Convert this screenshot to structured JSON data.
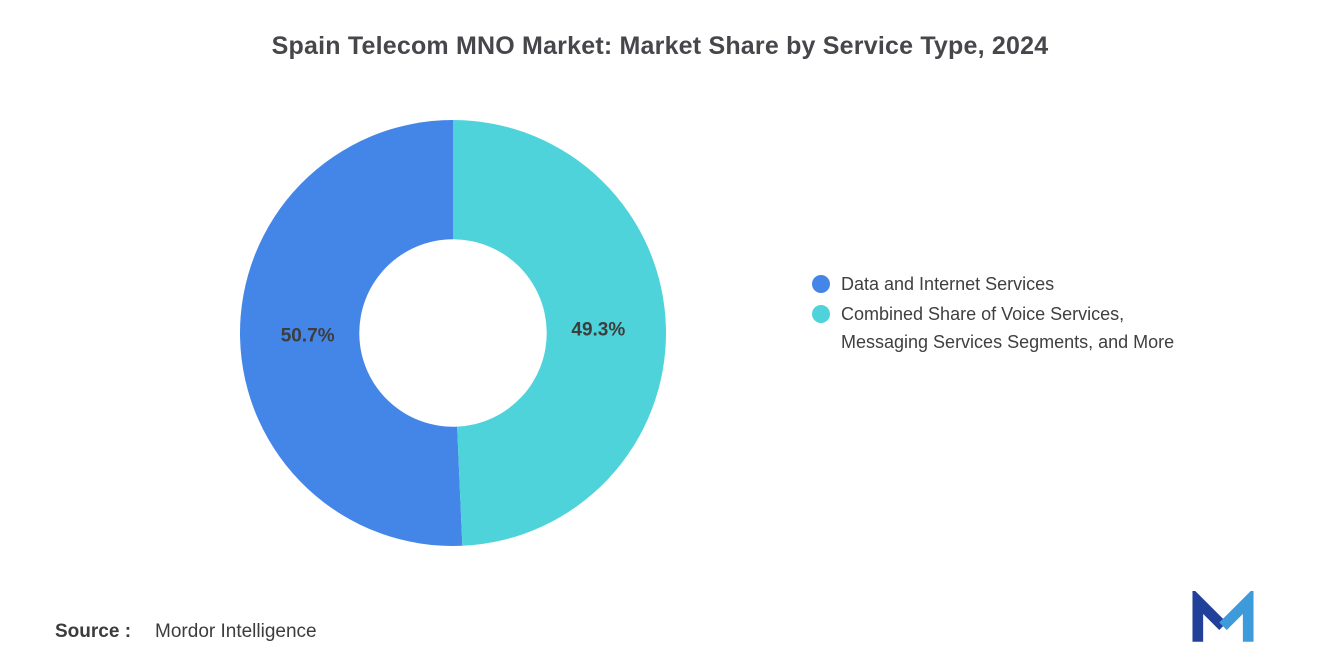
{
  "title": "Spain Telecom MNO Market: Market Share by Service Type, 2024",
  "source": {
    "label": "Source :",
    "text": "Mordor Intelligence"
  },
  "logo": {
    "name": "Mordor Intelligence logo",
    "colors": {
      "left": "#21409A",
      "right": "#3E9BDB"
    }
  },
  "chart_data": {
    "type": "pie",
    "subtype": "donut",
    "title": "Spain Telecom MNO Market: Market Share by Service Type, 2024",
    "slices": [
      {
        "name": "Data and Internet Services",
        "value": 50.7,
        "label": "50.7%",
        "color": "#4486E8",
        "legend_label": "Data and Internet Services"
      },
      {
        "name": "Combined Share of Voice Services, Messaging Services Segments, and More",
        "value": 49.3,
        "label": "49.3%",
        "color": "#4ED3DB",
        "legend_label": "Combined Share of Voice Services,\nMessaging Services Segments, and More"
      }
    ],
    "rotation_deg": 177.48,
    "inner_radius_ratio": 0.44,
    "legend_position": "right",
    "data_label_color": "#3d3d3d"
  }
}
